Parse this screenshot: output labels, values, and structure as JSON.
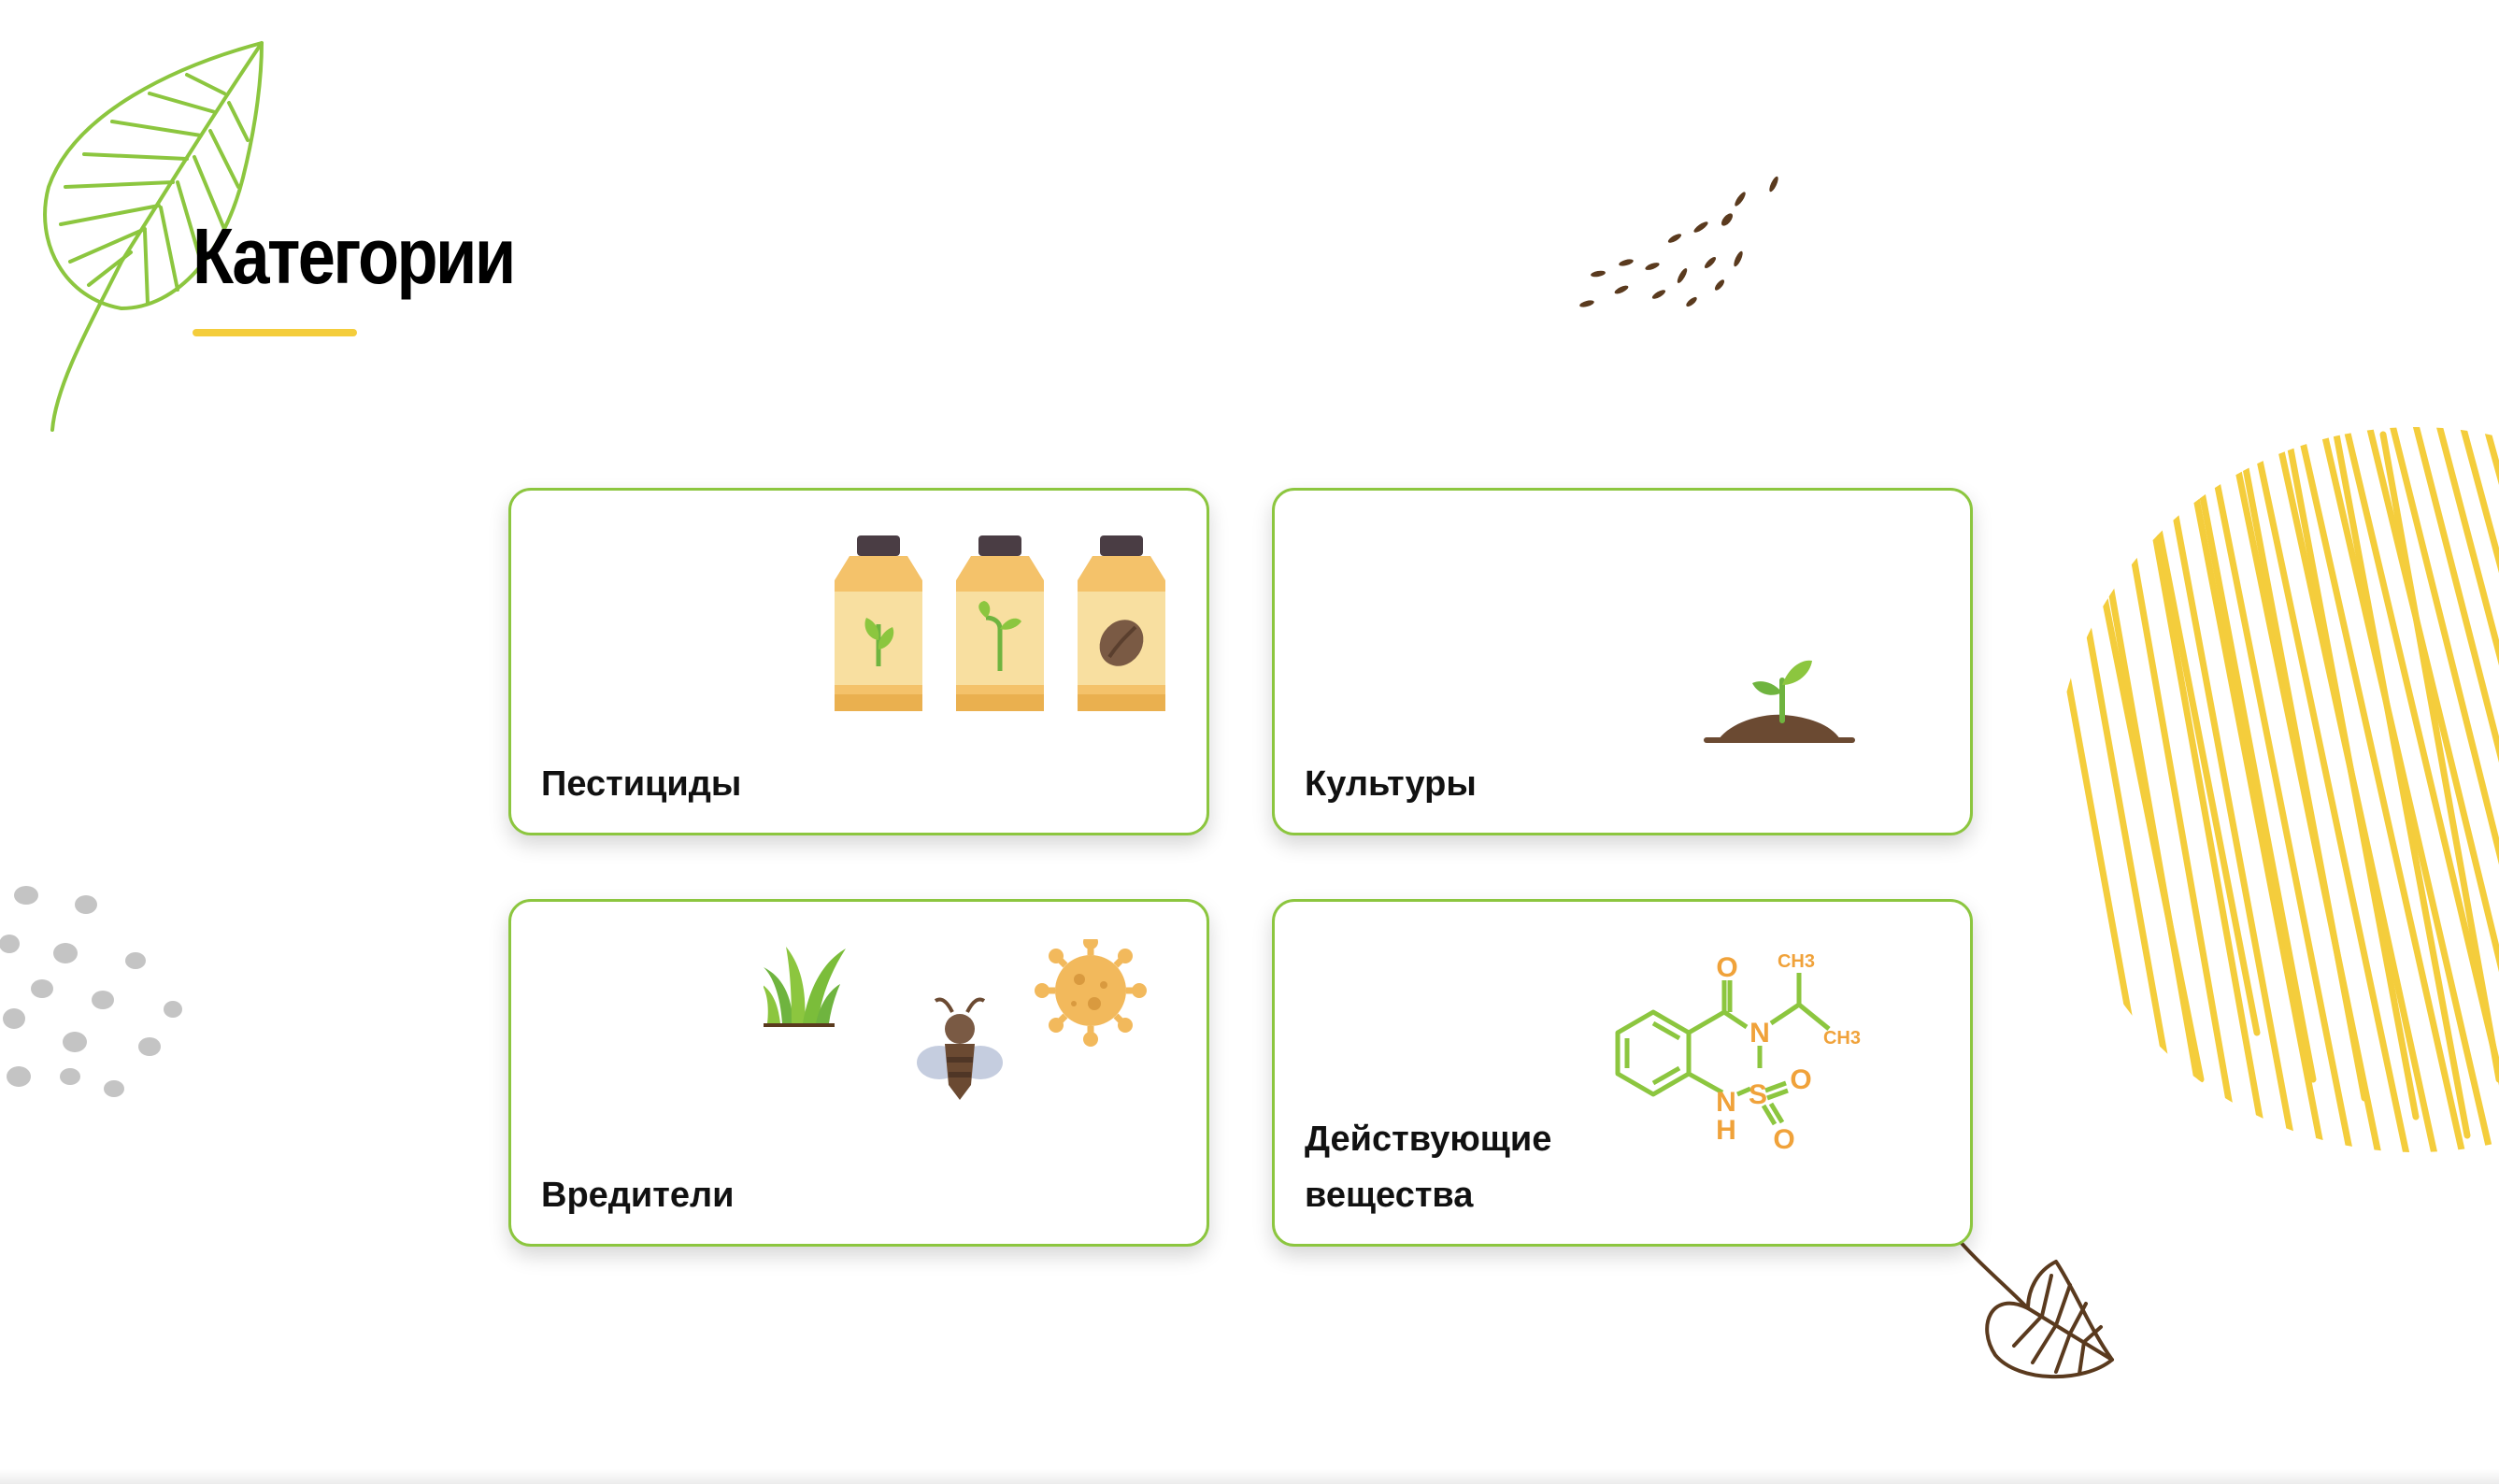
{
  "header": {
    "title": "Категории"
  },
  "categories": [
    {
      "label": "Пестициды",
      "icon": "pesticide-bottles-icon"
    },
    {
      "label": "Культуры",
      "icon": "sprout-icon"
    },
    {
      "label": "Вредители",
      "icon": "pests-icon"
    },
    {
      "label": "Действующие вещества",
      "icon": "chemical-structure-icon"
    }
  ],
  "molecule_labels": {
    "o_top": "O",
    "n": "N",
    "ch3_top": "CH3",
    "ch3_right": "CH3",
    "s": "S",
    "o_right": "O",
    "o_bottom": "O",
    "nh_n": "N",
    "nh_h": "H"
  },
  "colors": {
    "accent_green": "#8cc63f",
    "accent_yellow": "#f4cd3c",
    "chem_orange": "#f0a23a",
    "soil_brown": "#6b4a32"
  }
}
